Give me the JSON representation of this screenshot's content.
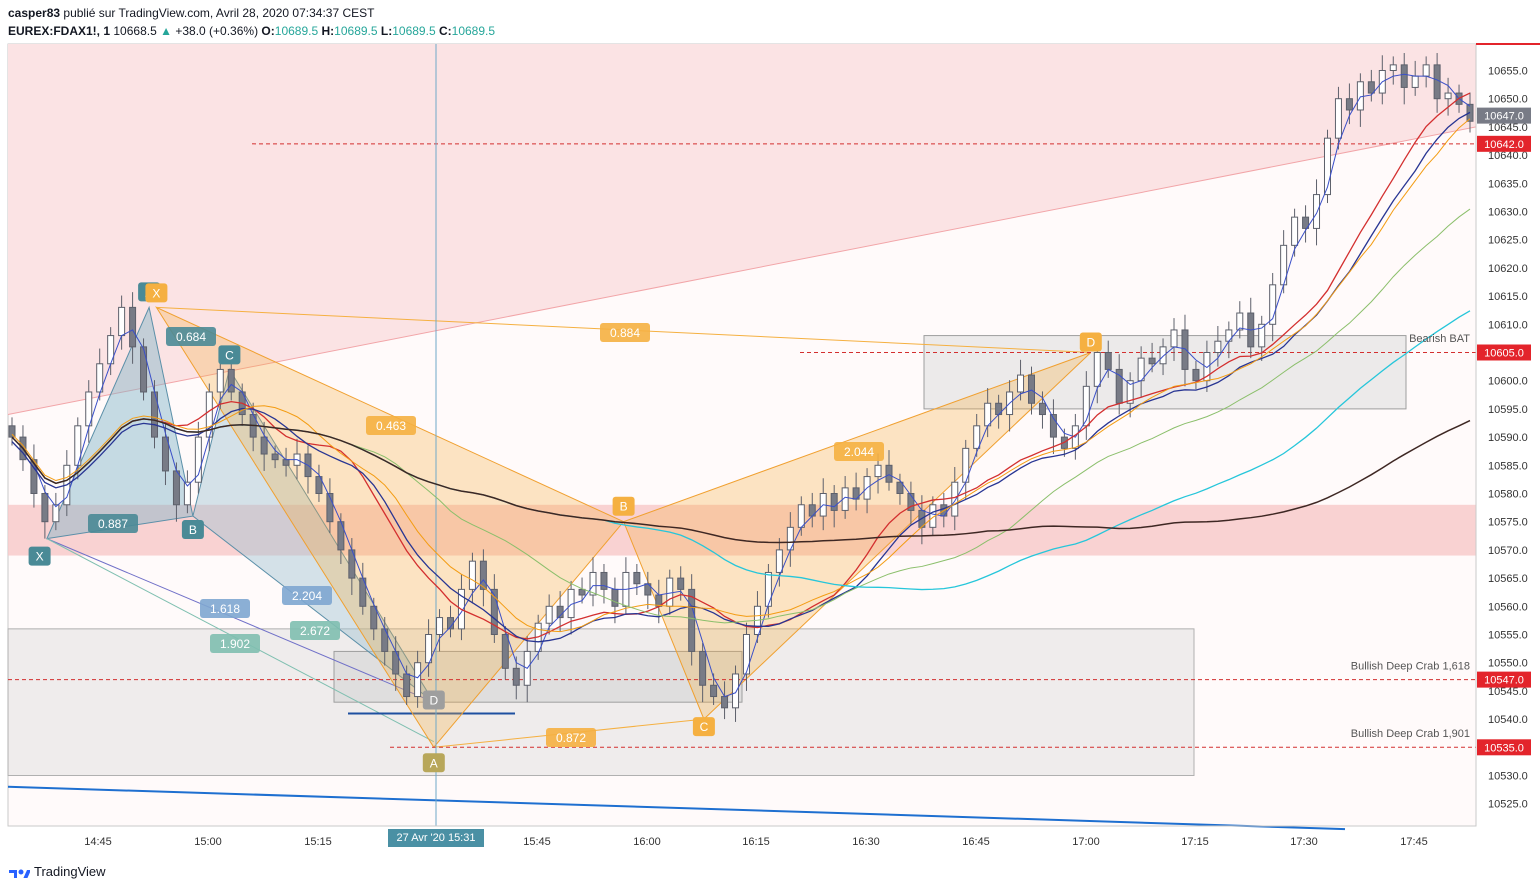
{
  "header": {
    "author": "casper83",
    "published": "publié sur TradingView.com, Avril 28, 2020 07:34:37 CEST",
    "symbol": "EUREX:FDAX1!, 1",
    "last": "10668.5",
    "change": "+38.0 (+0.36%)",
    "o_label": "O:",
    "o": "10689.5",
    "h_label": "H:",
    "h": "10689.5",
    "l_label": "L:",
    "l": "10689.5",
    "c_label": "C:",
    "c": "10689.5"
  },
  "footer": {
    "brand": "TradingView"
  },
  "cursor": {
    "time_label": "27 Avr '20   15:31"
  },
  "colors": {
    "up": "#26a69a",
    "down": "#ef5350",
    "candle": "#787b86",
    "pink_zone": "#f8c8c8",
    "gray_zone": "#d8d8d8",
    "xabcd_blue": "#5b8fa8",
    "xabcd_orange": "#f5b041",
    "price_red": "#e3242b"
  },
  "chart_data": {
    "type": "candlestick",
    "instrument": "EUREX:FDAX1!",
    "interval": "1",
    "y_range": [
      10520,
      10660
    ],
    "x_ticks": [
      "14:45",
      "15:00",
      "15:15",
      "15:31",
      "15:45",
      "16:00",
      "16:15",
      "16:30",
      "16:45",
      "17:00",
      "17:15",
      "17:30",
      "17:45"
    ],
    "y_ticks": [
      "10655.0",
      "10650.0",
      "10645.0",
      "10640.0",
      "10635.0",
      "10630.0",
      "10625.0",
      "10620.0",
      "10615.0",
      "10610.0",
      "10605.0",
      "10600.0",
      "10595.0",
      "10590.0",
      "10585.0",
      "10580.0",
      "10575.0",
      "10570.0",
      "10565.0",
      "10560.0",
      "10555.0",
      "10550.0",
      "10545.0",
      "10540.0",
      "10535.0",
      "10530.0",
      "10525.0"
    ],
    "price_labels": [
      {
        "text": "10647.0",
        "value": 10647.0,
        "color": "#787b86"
      },
      {
        "text": "10642.0",
        "value": 10642.0,
        "color": "#e3242b"
      },
      {
        "text": "10605.0",
        "value": 10605.0,
        "color": "#e3242b"
      },
      {
        "text": "10547.0",
        "value": 10547.0,
        "color": "#e3242b"
      },
      {
        "text": "10535.0",
        "value": 10535.0,
        "color": "#e3242b"
      }
    ],
    "zone_labels": [
      {
        "text": "Bearish BAT",
        "value": 10607
      },
      {
        "text": "Bullish Deep Crab 1,618",
        "value": 10549
      },
      {
        "text": "Bullish Deep Crab 1,901",
        "value": 10537
      }
    ],
    "pattern_points": [
      {
        "label": "X",
        "t": "14:37",
        "value": 10572
      },
      {
        "label": "A",
        "t": "14:52",
        "value": 10613
      },
      {
        "label": "B",
        "t": "14:58",
        "value": 10576
      },
      {
        "label": "C",
        "t": "15:03",
        "value": 10602
      },
      {
        "label": "D",
        "t": "15:31",
        "value": 10544
      },
      {
        "label": "X",
        "t": "14:53",
        "value": 10613
      },
      {
        "label": "A",
        "t": "15:31",
        "value": 10535
      },
      {
        "label": "B",
        "t": "15:57",
        "value": 10575
      },
      {
        "label": "C",
        "t": "16:08",
        "value": 10540
      },
      {
        "label": "D",
        "t": "17:01",
        "value": 10605
      }
    ],
    "ratio_labels": [
      "0.684",
      "0.887",
      "0.463",
      "1.618",
      "2.204",
      "2.672",
      "1.902",
      "0.884",
      "2.044",
      "0.872"
    ],
    "close_series": [
      10590,
      10586,
      10580,
      10575,
      10578,
      10585,
      10592,
      10598,
      10603,
      10608,
      10613,
      10606,
      10598,
      10590,
      10584,
      10578,
      10582,
      10590,
      10598,
      10602,
      10598,
      10594,
      10590,
      10587,
      10586,
      10585,
      10587,
      10583,
      10580,
      10575,
      10570,
      10565,
      10560,
      10556,
      10552,
      10548,
      10544,
      10550,
      10555,
      10558,
      10556,
      10563,
      10568,
      10563,
      10555,
      10549,
      10546,
      10552,
      10557,
      10560,
      10558,
      10563,
      10562,
      10566,
      10563,
      10560,
      10566,
      10564,
      10562,
      10560,
      10565,
      10563,
      10552,
      10546,
      10544,
      10542,
      10548,
      10555,
      10560,
      10566,
      10570,
      10574,
      10578,
      10576,
      10580,
      10577,
      10581,
      10579,
      10583,
      10585,
      10582,
      10580,
      10577,
      10574,
      10578,
      10576,
      10582,
      10588,
      10592,
      10596,
      10594,
      10598,
      10601,
      10596,
      10594,
      10590,
      10588,
      10592,
      10599,
      10605,
      10602,
      10596,
      10600,
      10604,
      10603,
      10606,
      10609,
      10602,
      10600,
      10605,
      10607,
      10609,
      10612,
      10606,
      10610,
      10617,
      10624,
      10629,
      10627,
      10633,
      10643,
      10650,
      10648,
      10653,
      10651,
      10655,
      10656,
      10652,
      10654,
      10656,
      10650,
      10651,
      10649,
      10646
    ]
  }
}
